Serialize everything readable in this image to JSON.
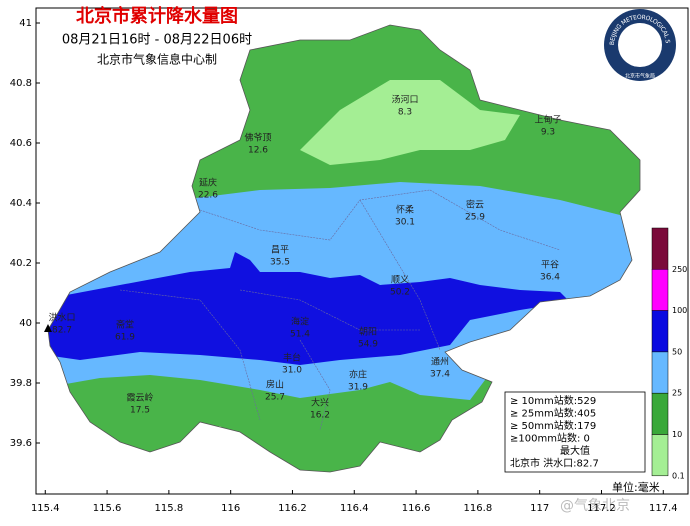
{
  "header": {
    "title": "北京市累计降水量图",
    "subtitle": "08月21日16时 - 08月22日06时",
    "source": "北京市气象信息中心制"
  },
  "axes": {
    "xlim": [
      115.37,
      117.48
    ],
    "xticks": [
      115.4,
      115.6,
      115.8,
      116,
      116.2,
      116.4,
      116.6,
      116.8,
      117,
      117.2,
      117.4
    ],
    "ylim": [
      39.43,
      41.05
    ],
    "yticks": [
      41,
      40.8,
      40.6,
      40.4,
      40.2,
      40,
      39.8,
      39.6
    ]
  },
  "stations": [
    {
      "name": "汤河口",
      "value": "8.3"
    },
    {
      "name": "上甸子",
      "value": "9.3"
    },
    {
      "name": "佛爷顶",
      "value": "12.6"
    },
    {
      "name": "延庆",
      "value": "22.6"
    },
    {
      "name": "怀柔",
      "value": "30.1"
    },
    {
      "name": "密云",
      "value": "25.9"
    },
    {
      "name": "昌平",
      "value": "35.5"
    },
    {
      "name": "平谷",
      "value": "36.4"
    },
    {
      "name": "顺义",
      "value": "50.2"
    },
    {
      "name": "洪水口",
      "value": "82.7"
    },
    {
      "name": "斋堂",
      "value": "61.9"
    },
    {
      "name": "海淀",
      "value": "51.4"
    },
    {
      "name": "朝阳",
      "value": "54.9"
    },
    {
      "name": "丰台",
      "value": "31.0"
    },
    {
      "name": "通州",
      "value": "37.4"
    },
    {
      "name": "房山",
      "value": "25.7"
    },
    {
      "name": "亦庄",
      "value": "31.9"
    },
    {
      "name": "大兴",
      "value": "16.2"
    },
    {
      "name": "霞云岭",
      "value": "17.5"
    }
  ],
  "legend": {
    "levels": [
      "250",
      "100",
      "50",
      "25",
      "10",
      "0.1"
    ],
    "colors": [
      "#7a0a3a",
      "#ff00ff",
      "#0a0ae0",
      "#66b8ff",
      "#3aa83a",
      "#a4ee94"
    ],
    "unit": "单位:毫米"
  },
  "stats": {
    "lines": [
      "≥ 10mm站数:529",
      "≥ 25mm站数:405",
      "≥ 50mm站数:179",
      "≥100mm站数: 0",
      "最大值",
      "北京市 洪水口:82.7"
    ]
  },
  "logo": {
    "text": "BEIJING METEOROLOGICAL SERVICE",
    "cn": "北京市气象局"
  },
  "watermark": "@气象北京"
}
